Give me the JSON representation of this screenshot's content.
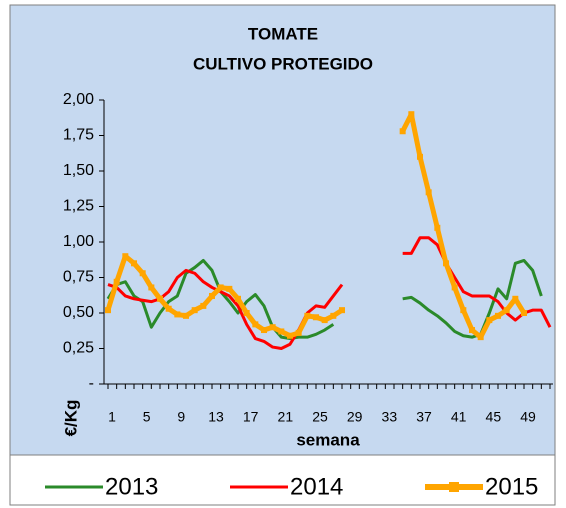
{
  "chart_data": {
    "type": "line",
    "title": "TOMATE",
    "subtitle": "CULTIVO PROTEGIDO",
    "x_label": "semana",
    "y_label": "€/Kg",
    "categories": [
      "1",
      null,
      null,
      null,
      "5",
      null,
      null,
      null,
      "9",
      null,
      null,
      null,
      "13",
      null,
      null,
      null,
      "17",
      null,
      null,
      null,
      "21",
      null,
      null,
      null,
      "25",
      null,
      null,
      null,
      "29",
      null,
      null,
      null,
      "33",
      null,
      null,
      null,
      "37",
      null,
      null,
      null,
      "41",
      null,
      null,
      null,
      "45",
      null,
      null,
      null,
      "49",
      null,
      null,
      null
    ],
    "ylim": [
      0,
      2
    ],
    "yticks": [
      {
        "value": 0,
        "label": "-"
      },
      {
        "value": 0.25,
        "label": "0,25"
      },
      {
        "value": 0.5,
        "label": "0,50"
      },
      {
        "value": 0.75,
        "label": "0,75"
      },
      {
        "value": 1,
        "label": "1,00"
      },
      {
        "value": 1.25,
        "label": "1,25"
      },
      {
        "value": 1.5,
        "label": "1,50"
      },
      {
        "value": 1.75,
        "label": "1,75"
      },
      {
        "value": 2,
        "label": "2,00"
      }
    ],
    "grid": false,
    "legend": "bottom",
    "series": [
      {
        "name": "2013",
        "color": "#2a8a2a",
        "values": [
          0.6,
          0.7,
          0.72,
          0.62,
          0.58,
          0.4,
          0.5,
          0.58,
          0.62,
          0.78,
          0.82,
          0.87,
          0.8,
          0.65,
          0.58,
          0.5,
          0.58,
          0.63,
          0.55,
          0.4,
          0.33,
          0.32,
          0.33,
          0.33,
          0.35,
          0.38,
          0.42,
          null,
          null,
          null,
          null,
          null,
          null,
          null,
          0.6,
          0.61,
          0.57,
          0.52,
          0.48,
          0.43,
          0.37,
          0.34,
          0.33,
          0.35,
          0.5,
          0.67,
          0.6,
          0.85,
          0.87,
          0.8,
          0.62,
          null
        ]
      },
      {
        "name": "2014",
        "color": "#ff0000",
        "values": [
          0.7,
          0.68,
          0.62,
          0.6,
          0.59,
          0.58,
          0.6,
          0.65,
          0.75,
          0.8,
          0.78,
          0.72,
          0.68,
          0.65,
          0.62,
          0.55,
          0.42,
          0.32,
          0.3,
          0.26,
          0.25,
          0.28,
          0.38,
          0.5,
          0.55,
          0.54,
          0.62,
          0.7,
          null,
          null,
          null,
          null,
          null,
          null,
          0.92,
          0.92,
          1.03,
          1.03,
          0.98,
          0.85,
          0.75,
          0.65,
          0.62,
          0.62,
          0.62,
          0.58,
          0.5,
          0.45,
          0.5,
          0.52,
          0.52,
          0.4
        ]
      },
      {
        "name": "2015",
        "color": "#ffa500",
        "marker": "square",
        "values": [
          0.52,
          0.72,
          0.9,
          0.85,
          0.78,
          0.68,
          0.6,
          0.53,
          0.49,
          0.48,
          0.52,
          0.55,
          0.62,
          0.68,
          0.67,
          0.6,
          0.5,
          0.42,
          0.38,
          0.4,
          0.37,
          0.34,
          0.36,
          0.48,
          0.47,
          0.45,
          0.48,
          0.52,
          null,
          null,
          null,
          null,
          null,
          null,
          1.78,
          1.9,
          1.6,
          1.35,
          1.1,
          0.85,
          0.68,
          0.52,
          0.38,
          0.33,
          0.45,
          0.48,
          0.52,
          0.6,
          0.5,
          null,
          null,
          null
        ]
      }
    ]
  }
}
